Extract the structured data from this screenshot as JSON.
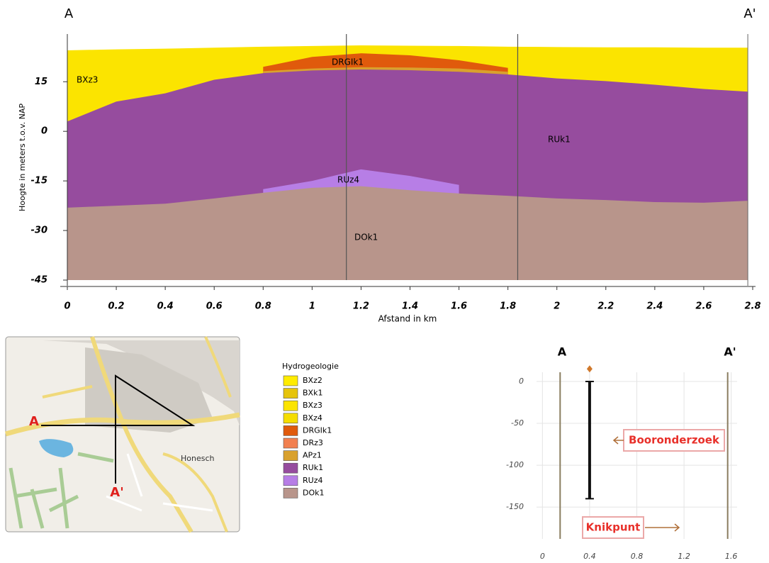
{
  "chart_data": [
    {
      "type": "area",
      "labels_top": [
        "A",
        "A'"
      ],
      "ylabel": "Hoogte in meters t.o.v. NAP",
      "xlabel": "Afstand in km",
      "x": [
        0,
        0.2,
        0.4,
        0.6,
        0.8,
        1,
        1.2,
        1.4,
        1.6,
        1.8,
        2,
        2.2,
        2.4,
        2.6,
        2.78
      ],
      "series": [
        {
          "name": "BXz3",
          "color": "#fbe400",
          "values": [
            24.5,
            24.8,
            25,
            25.3,
            25.6,
            25.8,
            26,
            25.9,
            25.8,
            25.6,
            25.5,
            25.4,
            25.4,
            25.3,
            25.3
          ]
        },
        {
          "name": "DRGIk1",
          "color": "#e05a0c",
          "values": [
            null,
            null,
            null,
            null,
            19.5,
            22.5,
            23.6,
            23,
            21.5,
            19.2,
            null,
            null,
            null,
            null,
            null
          ]
        },
        {
          "name": "APz1",
          "color": "#d9a12e",
          "values": [
            null,
            null,
            null,
            null,
            18.2,
            19,
            19.4,
            19.3,
            19,
            18,
            null,
            null,
            null,
            null,
            null
          ]
        },
        {
          "name": "RUk1",
          "color": "#964c9e",
          "values": [
            3,
            9,
            11.5,
            15.6,
            17.6,
            18.4,
            18.7,
            18.5,
            18,
            17.2,
            16,
            15.2,
            14.1,
            12.8,
            12
          ]
        },
        {
          "name": "RUz4",
          "color": "#b77ee6",
          "values": [
            null,
            null,
            null,
            null,
            -17.5,
            -15,
            -11.5,
            -13.5,
            -16.2,
            null,
            null,
            null,
            null,
            null,
            null
          ]
        },
        {
          "name": "DOk1",
          "color": "#b8958b",
          "values": [
            -23.1,
            -22.5,
            -21.9,
            -20.3,
            -18.6,
            -17.1,
            -16.6,
            -17.8,
            -18.8,
            -19.5,
            -20.3,
            -20.8,
            -21.4,
            -21.6,
            -21
          ]
        }
      ],
      "xlim": [
        0,
        2.8
      ],
      "xticks": [
        0,
        0.2,
        0.4,
        0.6,
        0.8,
        1,
        1.2,
        1.4,
        1.6,
        1.8,
        2,
        2.2,
        2.4,
        2.6,
        2.8
      ],
      "ylim": [
        -45,
        29
      ],
      "yticks": [
        -45,
        -30,
        -15,
        0,
        15
      ],
      "vlines": [
        1.14,
        1.84
      ],
      "annotations": [
        "BXz3",
        "DRGIk1",
        "RUz4",
        "RUk1",
        "DOk1"
      ]
    },
    {
      "type": "borehole",
      "labels_top": [
        "A",
        "A'"
      ],
      "xlim": [
        -0.05,
        1.65
      ],
      "xticks": [
        0,
        0.4,
        0.8,
        1.2,
        1.6
      ],
      "ylim": [
        -188,
        11
      ],
      "yticks": [
        0,
        -50,
        -100,
        -150
      ],
      "section_ends": [
        0.15,
        1.57
      ],
      "borehole": {
        "x": 0.4,
        "top": 0,
        "bottom": -140,
        "surface": 15
      },
      "annotations": [
        "Booronderzoek",
        "Knikpunt"
      ]
    }
  ],
  "map": {
    "labels": [
      "A",
      "A'",
      "Honesch"
    ]
  },
  "legend": {
    "title": "Hydrogeologie",
    "items": [
      {
        "name": "BXz2",
        "color": "#ffec00"
      },
      {
        "name": "BXk1",
        "color": "#e6c40a"
      },
      {
        "name": "BXz3",
        "color": "#fbe400"
      },
      {
        "name": "BXz4",
        "color": "#f5dd00"
      },
      {
        "name": "DRGIk1",
        "color": "#e05a0c"
      },
      {
        "name": "DRz3",
        "color": "#f28050"
      },
      {
        "name": "APz1",
        "color": "#d9a12e"
      },
      {
        "name": "RUk1",
        "color": "#964c9e"
      },
      {
        "name": "RUz4",
        "color": "#b77ee6"
      },
      {
        "name": "DOk1",
        "color": "#b8958b"
      }
    ]
  }
}
